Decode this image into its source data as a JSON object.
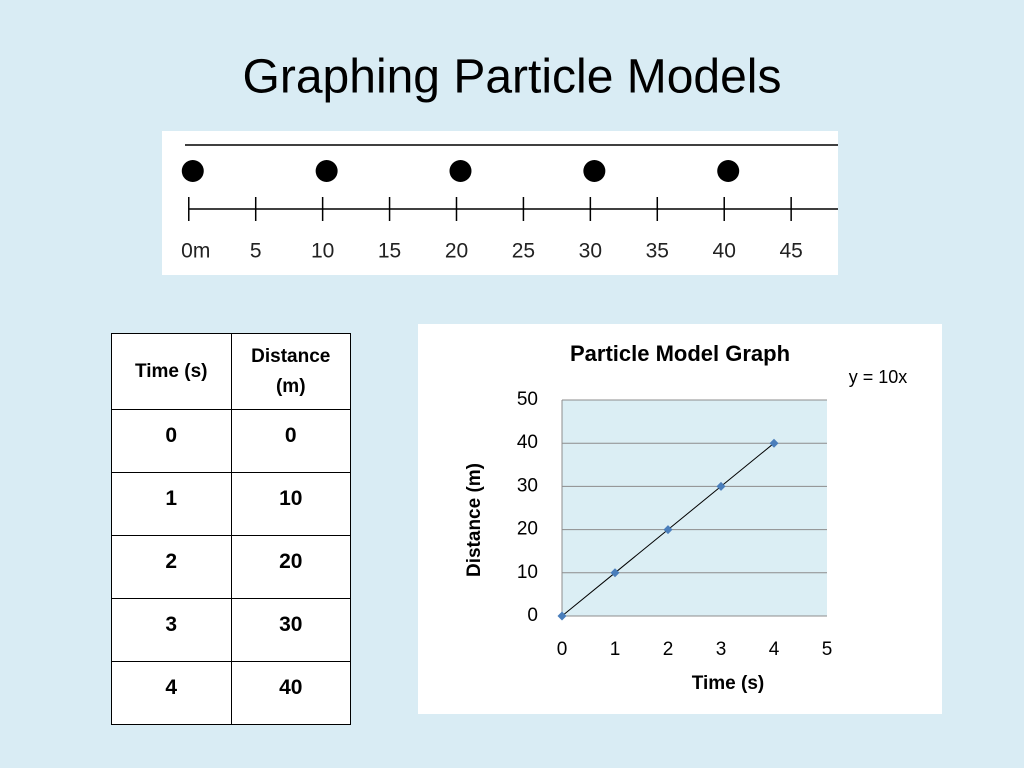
{
  "title": "Graphing Particle Models",
  "number_line": {
    "xlim": [
      -2,
      48.5
    ],
    "ticks": [
      {
        "value": 0,
        "label": "0m"
      },
      5,
      10,
      15,
      20,
      25,
      30,
      35,
      40,
      45
    ],
    "dots": [
      0,
      10,
      20,
      30,
      40
    ]
  },
  "table": {
    "header": [
      "Time (s)",
      "Distance (m)"
    ],
    "rows": [
      [
        0,
        0
      ],
      [
        1,
        10
      ],
      [
        2,
        20
      ],
      [
        3,
        30
      ],
      [
        4,
        40
      ]
    ]
  },
  "chart_data": {
    "type": "line",
    "title": "Particle Model Graph",
    "annotation": "y = 10x",
    "x_label": "Time (s)",
    "y_label": "Distance (m)",
    "x": [
      0,
      1,
      2,
      3,
      4
    ],
    "values": [
      0,
      10,
      20,
      30,
      40
    ],
    "color": "#4a7ebb",
    "line_color": "#000000",
    "marker": "diamond",
    "xlim": [
      0,
      5
    ],
    "xticks": [
      0,
      1,
      2,
      3,
      4,
      5
    ],
    "ylim": [
      0,
      50
    ],
    "yticks": [
      0,
      10,
      20,
      30,
      40,
      50
    ],
    "grid": true
  }
}
